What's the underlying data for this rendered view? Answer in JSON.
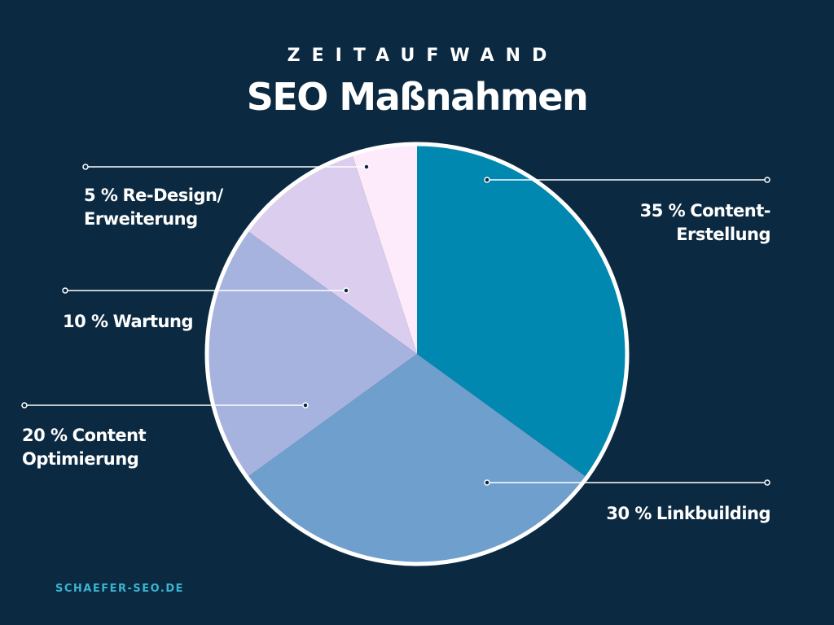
{
  "chart_data": {
    "type": "pie",
    "subtitle": "ZEITAUFWAND",
    "title": "SEO Maßnahmen",
    "categories": [
      "Content-\nErstellung",
      "Linkbuilding",
      "Content\nOptimierung",
      "Wartung",
      "Re-Design/\nErweiterung"
    ],
    "values": [
      35,
      30,
      20,
      10,
      5
    ],
    "value_labels": [
      "35 %",
      "30 %",
      "20 %",
      "10 %",
      "5 %"
    ],
    "colors": [
      "#0088b0",
      "#6f9fcd",
      "#a6b3de",
      "#dbcdee",
      "#fdeafa"
    ],
    "source": "SCHAEFER-SEO.DE"
  }
}
